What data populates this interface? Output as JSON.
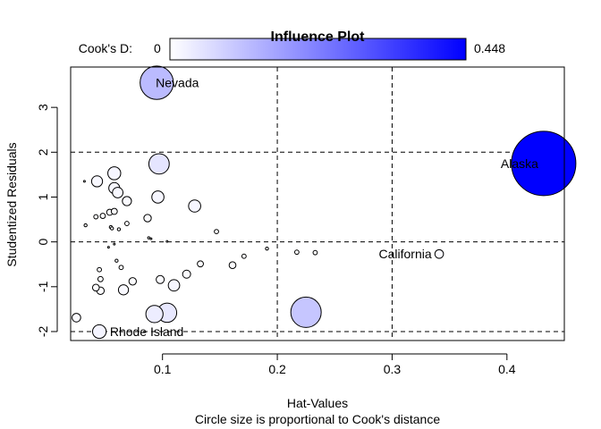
{
  "colors": {
    "low": "#ffffff",
    "high": "#0000ff",
    "axis": "#000000",
    "refline": "#000000"
  },
  "chart_data": {
    "type": "scatter",
    "title": "Influence Plot",
    "xlabel": "Hat-Values",
    "subtitle": "Circle size is proportional to Cook's distance",
    "ylabel": "Studentized Residuals",
    "xlim": [
      0.02,
      0.45
    ],
    "ylim": [
      -2.2,
      3.9
    ],
    "xticks": [
      0.1,
      0.2,
      0.3,
      0.4
    ],
    "xtick_labels": [
      "0.1",
      "0.2",
      "0.3",
      "0.4"
    ],
    "yticks": [
      -2,
      -1,
      0,
      1,
      2,
      3
    ],
    "ytick_labels": [
      "-2",
      "-1",
      "0",
      "1",
      "2",
      "3"
    ],
    "grid": false,
    "ref_lines": {
      "h": [
        -2,
        0,
        2
      ],
      "v": [
        0.2,
        0.3
      ]
    },
    "legend": {
      "label": "Cook's D:",
      "min_label": "0",
      "max_label": "0.448",
      "min": 0,
      "max": 0.448,
      "placement": "top"
    },
    "points": [
      {
        "x": 0.095,
        "y": 3.55,
        "cookd": 0.12,
        "label": "Nevada"
      },
      {
        "x": 0.432,
        "y": 1.75,
        "cookd": 0.448,
        "label": "Alaska"
      },
      {
        "x": 0.225,
        "y": -1.57,
        "cookd": 0.1,
        "label": ""
      },
      {
        "x": 0.341,
        "y": -0.27,
        "cookd": 0.008,
        "label": "California"
      },
      {
        "x": 0.045,
        "y": -2.0,
        "cookd": 0.02,
        "label": "Rhode Island"
      },
      {
        "x": 0.097,
        "y": 1.74,
        "cookd": 0.045,
        "label": ""
      },
      {
        "x": 0.058,
        "y": 1.53,
        "cookd": 0.018,
        "label": ""
      },
      {
        "x": 0.043,
        "y": 1.35,
        "cookd": 0.013,
        "label": ""
      },
      {
        "x": 0.058,
        "y": 1.2,
        "cookd": 0.013,
        "label": ""
      },
      {
        "x": 0.061,
        "y": 1.1,
        "cookd": 0.012,
        "label": ""
      },
      {
        "x": 0.069,
        "y": 0.91,
        "cookd": 0.009,
        "label": ""
      },
      {
        "x": 0.096,
        "y": 1.0,
        "cookd": 0.016,
        "label": ""
      },
      {
        "x": 0.128,
        "y": 0.8,
        "cookd": 0.016,
        "label": ""
      },
      {
        "x": 0.087,
        "y": 0.53,
        "cookd": 0.006,
        "label": ""
      },
      {
        "x": 0.147,
        "y": 0.23,
        "cookd": 0.002,
        "label": ""
      },
      {
        "x": 0.048,
        "y": 0.58,
        "cookd": 0.003,
        "label": ""
      },
      {
        "x": 0.054,
        "y": 0.66,
        "cookd": 0.004,
        "label": ""
      },
      {
        "x": 0.058,
        "y": 0.68,
        "cookd": 0.004,
        "label": ""
      },
      {
        "x": 0.042,
        "y": 0.56,
        "cookd": 0.002,
        "label": ""
      },
      {
        "x": 0.033,
        "y": 0.37,
        "cookd": 0.001,
        "label": ""
      },
      {
        "x": 0.055,
        "y": 0.33,
        "cookd": 0.001,
        "label": ""
      },
      {
        "x": 0.056,
        "y": 0.3,
        "cookd": 0.001,
        "label": ""
      },
      {
        "x": 0.062,
        "y": 0.28,
        "cookd": 0.001,
        "label": ""
      },
      {
        "x": 0.069,
        "y": 0.41,
        "cookd": 0.002,
        "label": ""
      },
      {
        "x": 0.088,
        "y": 0.09,
        "cookd": 0.0005,
        "label": ""
      },
      {
        "x": 0.09,
        "y": 0.07,
        "cookd": 0.0003,
        "label": ""
      },
      {
        "x": 0.053,
        "y": -0.12,
        "cookd": 0.0003,
        "label": ""
      },
      {
        "x": 0.058,
        "y": -0.05,
        "cookd": 0.0002,
        "label": ""
      },
      {
        "x": 0.104,
        "y": 0.01,
        "cookd": 0.0001,
        "label": ""
      },
      {
        "x": 0.191,
        "y": -0.15,
        "cookd": 0.001,
        "label": ""
      },
      {
        "x": 0.217,
        "y": -0.23,
        "cookd": 0.002,
        "label": ""
      },
      {
        "x": 0.233,
        "y": -0.24,
        "cookd": 0.002,
        "label": ""
      },
      {
        "x": 0.171,
        "y": -0.32,
        "cookd": 0.002,
        "label": ""
      },
      {
        "x": 0.161,
        "y": -0.52,
        "cookd": 0.005,
        "label": ""
      },
      {
        "x": 0.133,
        "y": -0.49,
        "cookd": 0.004,
        "label": ""
      },
      {
        "x": 0.06,
        "y": -0.42,
        "cookd": 0.001,
        "label": ""
      },
      {
        "x": 0.064,
        "y": -0.57,
        "cookd": 0.002,
        "label": ""
      },
      {
        "x": 0.045,
        "y": -0.62,
        "cookd": 0.002,
        "label": ""
      },
      {
        "x": 0.046,
        "y": -0.83,
        "cookd": 0.003,
        "label": ""
      },
      {
        "x": 0.074,
        "y": -0.88,
        "cookd": 0.006,
        "label": ""
      },
      {
        "x": 0.098,
        "y": -0.84,
        "cookd": 0.007,
        "label": ""
      },
      {
        "x": 0.121,
        "y": -0.72,
        "cookd": 0.007,
        "label": ""
      },
      {
        "x": 0.11,
        "y": -0.97,
        "cookd": 0.014,
        "label": ""
      },
      {
        "x": 0.042,
        "y": -1.02,
        "cookd": 0.005,
        "label": ""
      },
      {
        "x": 0.046,
        "y": -1.09,
        "cookd": 0.006,
        "label": ""
      },
      {
        "x": 0.066,
        "y": -1.07,
        "cookd": 0.011,
        "label": ""
      },
      {
        "x": 0.093,
        "y": -1.61,
        "cookd": 0.032,
        "label": ""
      },
      {
        "x": 0.104,
        "y": -1.58,
        "cookd": 0.04,
        "label": ""
      },
      {
        "x": 0.025,
        "y": -1.69,
        "cookd": 0.008,
        "label": ""
      },
      {
        "x": 0.032,
        "y": 1.35,
        "cookd": 0.0,
        "label": ""
      }
    ]
  }
}
